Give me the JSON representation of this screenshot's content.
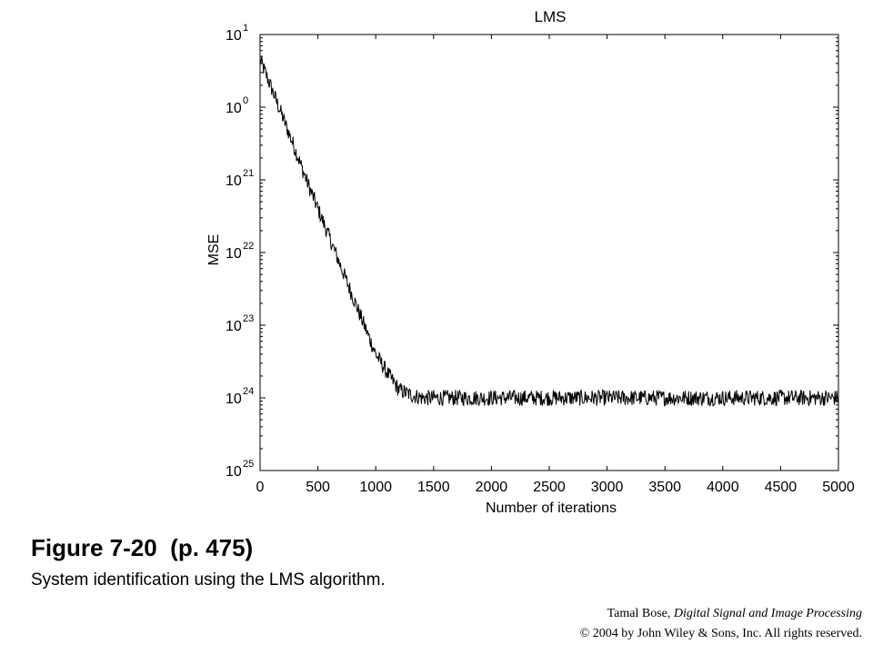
{
  "chart_data": {
    "type": "line",
    "title": "LMS",
    "xlabel": "Number of iterations",
    "ylabel": "MSE",
    "xlim": [
      0,
      5000
    ],
    "ylim": [
      1e-05,
      10
    ],
    "yscale": "log",
    "x_ticks": [
      "0",
      "500",
      "1000",
      "1500",
      "2000",
      "2500",
      "3000",
      "3500",
      "4000",
      "4500",
      "5000"
    ],
    "y_ticks": [
      {
        "base": "10",
        "exp": "1"
      },
      {
        "base": "10",
        "exp": "0"
      },
      {
        "base": "10",
        "exp": "21"
      },
      {
        "base": "10",
        "exp": "22"
      },
      {
        "base": "10",
        "exp": "23"
      },
      {
        "base": "10",
        "exp": "24"
      },
      {
        "base": "10",
        "exp": "25"
      }
    ],
    "grid": false,
    "series": [
      {
        "color": "#000000",
        "x": [
          0,
          100,
          200,
          300,
          400,
          500,
          600,
          700,
          800,
          900,
          1000,
          1100,
          1200,
          1300,
          1400,
          1500,
          2000,
          2500,
          3000,
          3500,
          4000,
          4500,
          5000
        ],
        "values": [
          4.5,
          1.8,
          0.7,
          0.27,
          0.1,
          0.04,
          0.016,
          0.0063,
          0.0025,
          0.001,
          0.0004,
          0.00022,
          0.00013,
          0.00011,
          0.0001,
          0.0001,
          0.0001,
          0.0001,
          0.0001,
          0.0001,
          0.0001,
          0.0001,
          0.0001
        ]
      }
    ]
  },
  "figure": {
    "title": "Figure 7-20  (p. 475)",
    "caption": "System identification using the LMS algorithm."
  },
  "credit": {
    "author": "Tamal Bose, ",
    "book": "Digital Signal and Image Processing",
    "copyright": "© 2004 by John Wiley & Sons, Inc.  All rights reserved."
  }
}
